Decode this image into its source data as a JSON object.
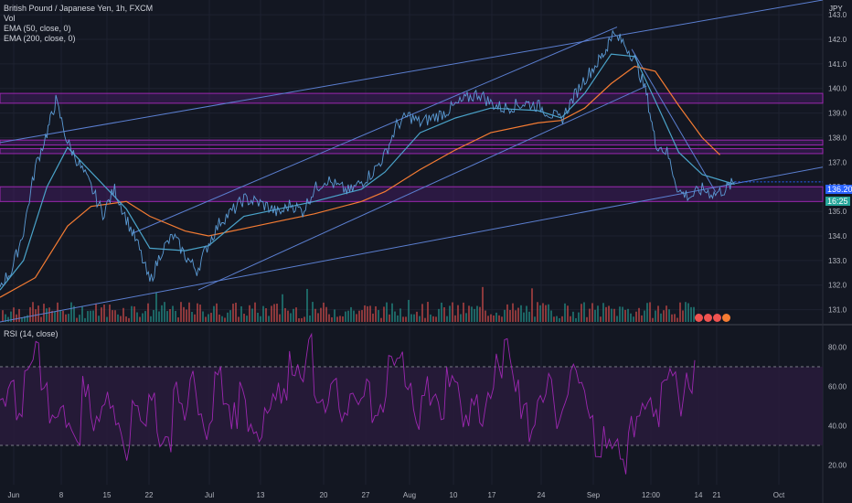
{
  "legend": {
    "symbol": "British Pound / Japanese Yen, 1h, FXCM",
    "vol": "Vol",
    "ema50": "EMA (50, close, 0)",
    "ema200": "EMA (200, close, 0)",
    "rsi": "RSI (14, close)"
  },
  "currency": "JPY",
  "price_label": "136.201",
  "countdown_label": "16:25",
  "colors": {
    "background": "#131722",
    "grid": "#1e2230",
    "price_line": "#5b9bd5",
    "ema50": "#4aa3c9",
    "ema200": "#f57c33",
    "trendline": "#5b7fd1",
    "zone_fill": "#4a1d6b",
    "zone_border": "#9c27b0",
    "rsi": "#9c27b0",
    "rsi_band": "#2a1b3d",
    "vol_up": "#26a69a",
    "vol_down": "#ef5350",
    "price_tag": "#2962ff",
    "countdown_tag": "#26a69a"
  },
  "chart_data": [
    {
      "type": "line",
      "ylim": [
        130.5,
        143.6
      ],
      "y_ticks": [
        131.0,
        132.0,
        133.0,
        134.0,
        135.0,
        136.0,
        137.0,
        138.0,
        139.0,
        140.0,
        141.0,
        142.0,
        143.0
      ],
      "x_ticks": [
        "Jun",
        "8",
        "15",
        "22",
        "Jul",
        "13",
        "20",
        "27",
        "Aug",
        "10",
        "17",
        "24",
        "Sep",
        "12:00",
        "14",
        "21",
        "Oct"
      ],
      "grid": true,
      "price_path": [
        [
          0,
          132.0
        ],
        [
          0.8,
          132.6
        ],
        [
          1.6,
          134.2
        ],
        [
          2.4,
          136.8
        ],
        [
          3.2,
          138.2
        ],
        [
          3.8,
          139.5
        ],
        [
          4.6,
          137.8
        ],
        [
          5.4,
          136.9
        ],
        [
          6.2,
          136.0
        ],
        [
          7.0,
          134.9
        ],
        [
          7.8,
          135.9
        ],
        [
          8.6,
          134.7
        ],
        [
          9.4,
          133.6
        ],
        [
          10.2,
          132.1
        ],
        [
          11.0,
          133.4
        ],
        [
          11.8,
          134.0
        ],
        [
          12.6,
          133.2
        ],
        [
          13.4,
          132.6
        ],
        [
          14.2,
          133.7
        ],
        [
          15.0,
          134.6
        ],
        [
          15.8,
          135.0
        ],
        [
          16.6,
          135.5
        ],
        [
          17.4,
          135.4
        ],
        [
          18.2,
          135.2
        ],
        [
          19.0,
          134.9
        ],
        [
          19.8,
          135.3
        ],
        [
          20.6,
          135.0
        ],
        [
          21.4,
          135.9
        ],
        [
          22.2,
          136.3
        ],
        [
          23.0,
          136.0
        ],
        [
          23.8,
          135.8
        ],
        [
          24.6,
          136.2
        ],
        [
          25.4,
          136.6
        ],
        [
          26.2,
          137.3
        ],
        [
          27.0,
          138.5
        ],
        [
          27.8,
          138.9
        ],
        [
          28.6,
          138.6
        ],
        [
          29.4,
          138.8
        ],
        [
          30.2,
          139.0
        ],
        [
          31.0,
          139.3
        ],
        [
          31.8,
          139.6
        ],
        [
          32.6,
          139.8
        ],
        [
          33.4,
          139.4
        ],
        [
          34.2,
          139.2
        ],
        [
          35.0,
          139.3
        ],
        [
          35.8,
          139.4
        ],
        [
          36.6,
          139.3
        ],
        [
          37.4,
          139.0
        ],
        [
          38.2,
          138.7
        ],
        [
          39.0,
          139.6
        ],
        [
          39.8,
          140.4
        ],
        [
          40.6,
          141.0
        ],
        [
          41.2,
          141.5
        ],
        [
          41.6,
          142.2
        ],
        [
          42.4,
          141.9
        ],
        [
          43.2,
          141.2
        ],
        [
          44.0,
          139.8
        ],
        [
          44.6,
          137.8
        ],
        [
          45.4,
          137.4
        ],
        [
          46.2,
          135.8
        ],
        [
          47.0,
          135.6
        ],
        [
          47.8,
          135.9
        ],
        [
          48.6,
          135.7
        ],
        [
          49.4,
          135.9
        ],
        [
          50.0,
          136.2
        ]
      ],
      "ema50_path": [
        [
          0,
          131.8
        ],
        [
          1.6,
          133.0
        ],
        [
          3.2,
          136.0
        ],
        [
          4.6,
          137.6
        ],
        [
          6.2,
          136.6
        ],
        [
          8.6,
          135.1
        ],
        [
          10.2,
          133.5
        ],
        [
          12.6,
          133.4
        ],
        [
          14.2,
          133.6
        ],
        [
          16.6,
          134.8
        ],
        [
          19.0,
          135.1
        ],
        [
          21.4,
          135.4
        ],
        [
          24.6,
          135.9
        ],
        [
          26.2,
          136.6
        ],
        [
          28.6,
          138.2
        ],
        [
          31.0,
          138.8
        ],
        [
          33.4,
          139.2
        ],
        [
          36.6,
          139.1
        ],
        [
          38.2,
          138.8
        ],
        [
          39.8,
          139.8
        ],
        [
          41.6,
          141.4
        ],
        [
          43.2,
          141.3
        ],
        [
          44.6,
          139.5
        ],
        [
          46.2,
          137.4
        ],
        [
          47.8,
          136.5
        ],
        [
          50.0,
          136.1
        ]
      ],
      "ema200_path": [
        [
          0,
          131.5
        ],
        [
          2.4,
          132.3
        ],
        [
          4.6,
          134.4
        ],
        [
          6.2,
          135.2
        ],
        [
          8.6,
          135.4
        ],
        [
          10.2,
          134.8
        ],
        [
          12.6,
          134.2
        ],
        [
          14.2,
          134.0
        ],
        [
          16.6,
          134.3
        ],
        [
          19.0,
          134.6
        ],
        [
          21.4,
          134.9
        ],
        [
          24.6,
          135.4
        ],
        [
          26.2,
          135.8
        ],
        [
          28.6,
          136.7
        ],
        [
          31.0,
          137.5
        ],
        [
          33.4,
          138.2
        ],
        [
          36.6,
          138.6
        ],
        [
          38.2,
          138.7
        ],
        [
          39.8,
          139.2
        ],
        [
          41.6,
          140.2
        ],
        [
          43.2,
          140.9
        ],
        [
          44.6,
          140.7
        ],
        [
          46.2,
          139.3
        ],
        [
          47.8,
          138.0
        ],
        [
          49.0,
          137.3
        ]
      ],
      "zones": [
        [
          139.4,
          139.8
        ],
        [
          137.7,
          137.9
        ],
        [
          137.35,
          137.55
        ],
        [
          135.4,
          136.0
        ]
      ],
      "trendlines": [
        [
          [
            0,
            137.8
          ],
          [
            56,
            143.6
          ]
        ],
        [
          [
            9.0,
            134.1
          ],
          [
            42.0,
            142.5
          ]
        ],
        [
          [
            13.5,
            131.8
          ],
          [
            44.0,
            140.1
          ]
        ],
        [
          [
            0,
            130.5
          ],
          [
            56,
            136.8
          ]
        ],
        [
          [
            43.0,
            141.6
          ],
          [
            48.7,
            135.8
          ]
        ]
      ]
    },
    {
      "type": "line",
      "title": "RSI (14, close)",
      "ylim": [
        10,
        90
      ],
      "y_ticks": [
        20.0,
        40.0,
        60.0,
        80.0
      ],
      "band": [
        30,
        70
      ],
      "values": [
        55,
        62,
        48,
        70,
        76,
        58,
        44,
        50,
        41,
        35,
        60,
        38,
        47,
        52,
        40,
        28,
        55,
        45,
        50,
        36,
        33,
        58,
        48,
        62,
        44,
        38,
        66,
        52,
        45,
        58,
        41,
        35,
        49,
        60,
        55,
        72,
        68,
        80,
        58,
        47,
        63,
        42,
        50,
        55,
        61,
        40,
        52,
        70,
        74,
        58,
        45,
        60,
        52,
        48,
        66,
        58,
        42,
        52,
        45,
        56,
        70,
        78,
        62,
        50,
        38,
        56,
        62,
        45,
        52,
        70,
        58,
        44,
        30,
        35,
        28,
        22,
        38,
        46,
        55,
        42,
        58,
        66,
        50,
        62,
        68
      ]
    }
  ]
}
